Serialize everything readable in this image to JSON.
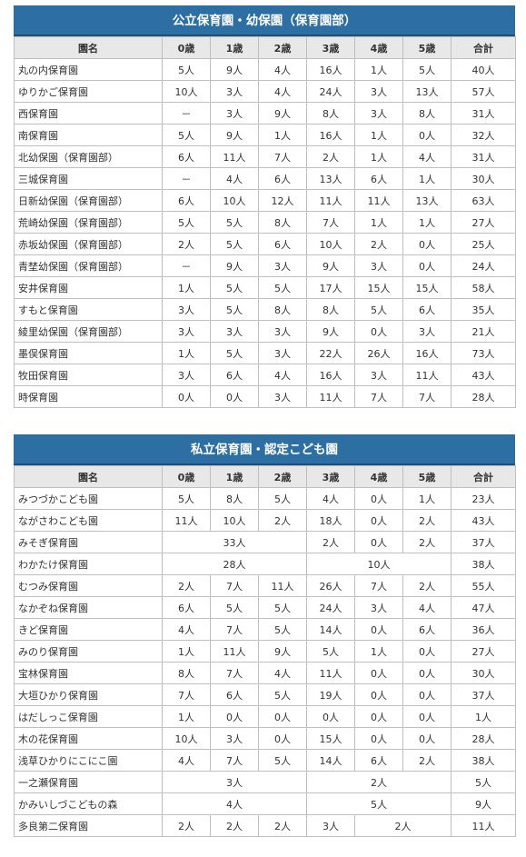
{
  "headers": [
    "園名",
    "0歳",
    "1歳",
    "2歳",
    "3歳",
    "4歳",
    "5歳",
    "合計"
  ],
  "public": {
    "title": "公立保育園・幼保園（保育園部）",
    "rows": [
      {
        "name": "丸の内保育園",
        "cells": [
          {
            "v": "5人"
          },
          {
            "v": "9人"
          },
          {
            "v": "4人"
          },
          {
            "v": "16人"
          },
          {
            "v": "1人"
          },
          {
            "v": "5人"
          },
          {
            "v": "40人"
          }
        ]
      },
      {
        "name": "ゆりかご保育園",
        "cells": [
          {
            "v": "10人"
          },
          {
            "v": "3人"
          },
          {
            "v": "4人"
          },
          {
            "v": "24人"
          },
          {
            "v": "3人"
          },
          {
            "v": "13人"
          },
          {
            "v": "57人"
          }
        ]
      },
      {
        "name": "西保育園",
        "cells": [
          {
            "v": "－"
          },
          {
            "v": "3人"
          },
          {
            "v": "9人"
          },
          {
            "v": "8人"
          },
          {
            "v": "3人"
          },
          {
            "v": "8人"
          },
          {
            "v": "31人"
          }
        ]
      },
      {
        "name": "南保育園",
        "cells": [
          {
            "v": "5人"
          },
          {
            "v": "9人"
          },
          {
            "v": "1人"
          },
          {
            "v": "16人"
          },
          {
            "v": "1人"
          },
          {
            "v": "0人"
          },
          {
            "v": "32人"
          }
        ]
      },
      {
        "name": "北幼保園（保育園部）",
        "cells": [
          {
            "v": "6人"
          },
          {
            "v": "11人"
          },
          {
            "v": "7人"
          },
          {
            "v": "2人"
          },
          {
            "v": "1人"
          },
          {
            "v": "4人"
          },
          {
            "v": "31人"
          }
        ]
      },
      {
        "name": "三城保育園",
        "cells": [
          {
            "v": "－"
          },
          {
            "v": "4人"
          },
          {
            "v": "6人"
          },
          {
            "v": "13人"
          },
          {
            "v": "6人"
          },
          {
            "v": "1人"
          },
          {
            "v": "30人"
          }
        ]
      },
      {
        "name": "日新幼保園（保育園部）",
        "cells": [
          {
            "v": "6人"
          },
          {
            "v": "10人"
          },
          {
            "v": "12人"
          },
          {
            "v": "11人"
          },
          {
            "v": "11人"
          },
          {
            "v": "13人"
          },
          {
            "v": "63人"
          }
        ]
      },
      {
        "name": "荒崎幼保園（保育園部）",
        "cells": [
          {
            "v": "5人"
          },
          {
            "v": "5人"
          },
          {
            "v": "8人"
          },
          {
            "v": "7人"
          },
          {
            "v": "1人"
          },
          {
            "v": "1人"
          },
          {
            "v": "27人"
          }
        ]
      },
      {
        "name": "赤坂幼保園（保育園部）",
        "cells": [
          {
            "v": "2人"
          },
          {
            "v": "5人"
          },
          {
            "v": "6人"
          },
          {
            "v": "10人"
          },
          {
            "v": "2人"
          },
          {
            "v": "0人"
          },
          {
            "v": "25人"
          }
        ]
      },
      {
        "name": "青埜幼保園（保育園部）",
        "cells": [
          {
            "v": "－"
          },
          {
            "v": "9人"
          },
          {
            "v": "3人"
          },
          {
            "v": "9人"
          },
          {
            "v": "3人"
          },
          {
            "v": "0人"
          },
          {
            "v": "24人"
          }
        ]
      },
      {
        "name": "安井保育園",
        "cells": [
          {
            "v": "1人"
          },
          {
            "v": "5人"
          },
          {
            "v": "5人"
          },
          {
            "v": "17人"
          },
          {
            "v": "15人"
          },
          {
            "v": "15人"
          },
          {
            "v": "58人"
          }
        ]
      },
      {
        "name": "すもと保育園",
        "cells": [
          {
            "v": "3人"
          },
          {
            "v": "5人"
          },
          {
            "v": "8人"
          },
          {
            "v": "8人"
          },
          {
            "v": "5人"
          },
          {
            "v": "6人"
          },
          {
            "v": "35人"
          }
        ]
      },
      {
        "name": "綾里幼保園（保育園部）",
        "cells": [
          {
            "v": "3人"
          },
          {
            "v": "3人"
          },
          {
            "v": "3人"
          },
          {
            "v": "9人"
          },
          {
            "v": "0人"
          },
          {
            "v": "3人"
          },
          {
            "v": "21人"
          }
        ]
      },
      {
        "name": "墨俣保育園",
        "cells": [
          {
            "v": "1人"
          },
          {
            "v": "5人"
          },
          {
            "v": "3人"
          },
          {
            "v": "22人"
          },
          {
            "v": "26人"
          },
          {
            "v": "16人"
          },
          {
            "v": "73人"
          }
        ]
      },
      {
        "name": "牧田保育園",
        "cells": [
          {
            "v": "3人"
          },
          {
            "v": "6人"
          },
          {
            "v": "4人"
          },
          {
            "v": "16人"
          },
          {
            "v": "3人"
          },
          {
            "v": "11人"
          },
          {
            "v": "43人"
          }
        ]
      },
      {
        "name": "時保育園",
        "cells": [
          {
            "v": "0人"
          },
          {
            "v": "0人"
          },
          {
            "v": "3人"
          },
          {
            "v": "11人"
          },
          {
            "v": "7人"
          },
          {
            "v": "7人"
          },
          {
            "v": "28人"
          }
        ]
      }
    ]
  },
  "private": {
    "title": "私立保育園・認定こども園",
    "rows": [
      {
        "name": "みつづかこども園",
        "cells": [
          {
            "v": "5人"
          },
          {
            "v": "8人"
          },
          {
            "v": "5人"
          },
          {
            "v": "4人"
          },
          {
            "v": "0人"
          },
          {
            "v": "1人"
          },
          {
            "v": "23人"
          }
        ]
      },
      {
        "name": "ながさわこども園",
        "cells": [
          {
            "v": "11人"
          },
          {
            "v": "10人"
          },
          {
            "v": "2人"
          },
          {
            "v": "18人"
          },
          {
            "v": "0人"
          },
          {
            "v": "2人"
          },
          {
            "v": "43人"
          }
        ]
      },
      {
        "name": "みそぎ保育園",
        "cells": [
          {
            "v": "33人",
            "span": 3
          },
          {
            "v": "2人"
          },
          {
            "v": "0人"
          },
          {
            "v": "2人"
          },
          {
            "v": "37人"
          }
        ]
      },
      {
        "name": "わかたけ保育園",
        "cells": [
          {
            "v": "28人",
            "span": 3
          },
          {
            "v": "10人",
            "span": 3
          },
          {
            "v": "38人"
          }
        ]
      },
      {
        "name": "むつみ保育園",
        "cells": [
          {
            "v": "2人"
          },
          {
            "v": "7人"
          },
          {
            "v": "11人"
          },
          {
            "v": "26人"
          },
          {
            "v": "7人"
          },
          {
            "v": "2人"
          },
          {
            "v": "55人"
          }
        ]
      },
      {
        "name": "なかぞね保育園",
        "cells": [
          {
            "v": "6人"
          },
          {
            "v": "5人"
          },
          {
            "v": "5人"
          },
          {
            "v": "24人"
          },
          {
            "v": "3人"
          },
          {
            "v": "4人"
          },
          {
            "v": "47人"
          }
        ]
      },
      {
        "name": "きど保育園",
        "cells": [
          {
            "v": "4人"
          },
          {
            "v": "7人"
          },
          {
            "v": "5人"
          },
          {
            "v": "14人"
          },
          {
            "v": "0人"
          },
          {
            "v": "6人"
          },
          {
            "v": "36人"
          }
        ]
      },
      {
        "name": "みのり保育園",
        "cells": [
          {
            "v": "1人"
          },
          {
            "v": "11人"
          },
          {
            "v": "9人"
          },
          {
            "v": "5人"
          },
          {
            "v": "1人"
          },
          {
            "v": "0人"
          },
          {
            "v": "27人"
          }
        ]
      },
      {
        "name": "宝林保育園",
        "cells": [
          {
            "v": "8人"
          },
          {
            "v": "7人"
          },
          {
            "v": "4人"
          },
          {
            "v": "11人"
          },
          {
            "v": "0人"
          },
          {
            "v": "0人"
          },
          {
            "v": "30人"
          }
        ]
      },
      {
        "name": "大垣ひかり保育園",
        "cells": [
          {
            "v": "7人"
          },
          {
            "v": "6人"
          },
          {
            "v": "5人"
          },
          {
            "v": "19人"
          },
          {
            "v": "0人"
          },
          {
            "v": "0人"
          },
          {
            "v": "37人"
          }
        ]
      },
      {
        "name": "はだしっこ保育園",
        "cells": [
          {
            "v": "1人"
          },
          {
            "v": "0人"
          },
          {
            "v": "0人"
          },
          {
            "v": "0人"
          },
          {
            "v": "0人"
          },
          {
            "v": "0人"
          },
          {
            "v": "1人"
          }
        ]
      },
      {
        "name": "木の花保育園",
        "cells": [
          {
            "v": "10人"
          },
          {
            "v": "3人"
          },
          {
            "v": "0人"
          },
          {
            "v": "15人"
          },
          {
            "v": "0人"
          },
          {
            "v": "0人"
          },
          {
            "v": "28人"
          }
        ]
      },
      {
        "name": "浅草ひかりにこにこ園",
        "cells": [
          {
            "v": "4人"
          },
          {
            "v": "7人"
          },
          {
            "v": "5人"
          },
          {
            "v": "14人"
          },
          {
            "v": "6人"
          },
          {
            "v": "2人"
          },
          {
            "v": "38人"
          }
        ]
      },
      {
        "name": "一之瀬保育園",
        "cells": [
          {
            "v": "3人",
            "span": 3
          },
          {
            "v": "2人",
            "span": 3
          },
          {
            "v": "5人"
          }
        ]
      },
      {
        "name": "かみいしづこどもの森",
        "cells": [
          {
            "v": "4人",
            "span": 3
          },
          {
            "v": "5人",
            "span": 3
          },
          {
            "v": "9人"
          }
        ]
      },
      {
        "name": "多良第二保育園",
        "cells": [
          {
            "v": "2人"
          },
          {
            "v": "2人"
          },
          {
            "v": "2人"
          },
          {
            "v": "3人"
          },
          {
            "v": "2人",
            "span": 2
          },
          {
            "v": "11人"
          }
        ]
      }
    ]
  }
}
